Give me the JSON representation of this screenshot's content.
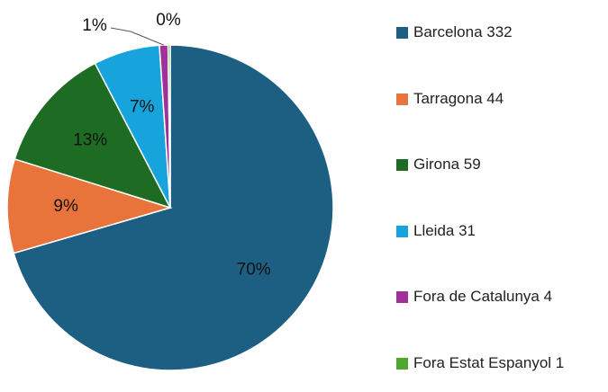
{
  "chart_data": {
    "type": "pie",
    "categories": [
      "Barcelona 332",
      "Tarragona 44",
      "Girona 59",
      "Lleida 31",
      "Fora de Catalunya  4",
      "Fora Estat Espanyol 1"
    ],
    "values": [
      70.49,
      9.34,
      12.53,
      6.58,
      0.85,
      0.21
    ],
    "value_labels": [
      "70%",
      "9%",
      "13%",
      "7%",
      "1%",
      "0%"
    ],
    "colors": [
      "#1d5f83",
      "#e8743b",
      "#1e6b24",
      "#17a3dc",
      "#a0309a",
      "#4ea72e"
    ],
    "legend": "right"
  }
}
